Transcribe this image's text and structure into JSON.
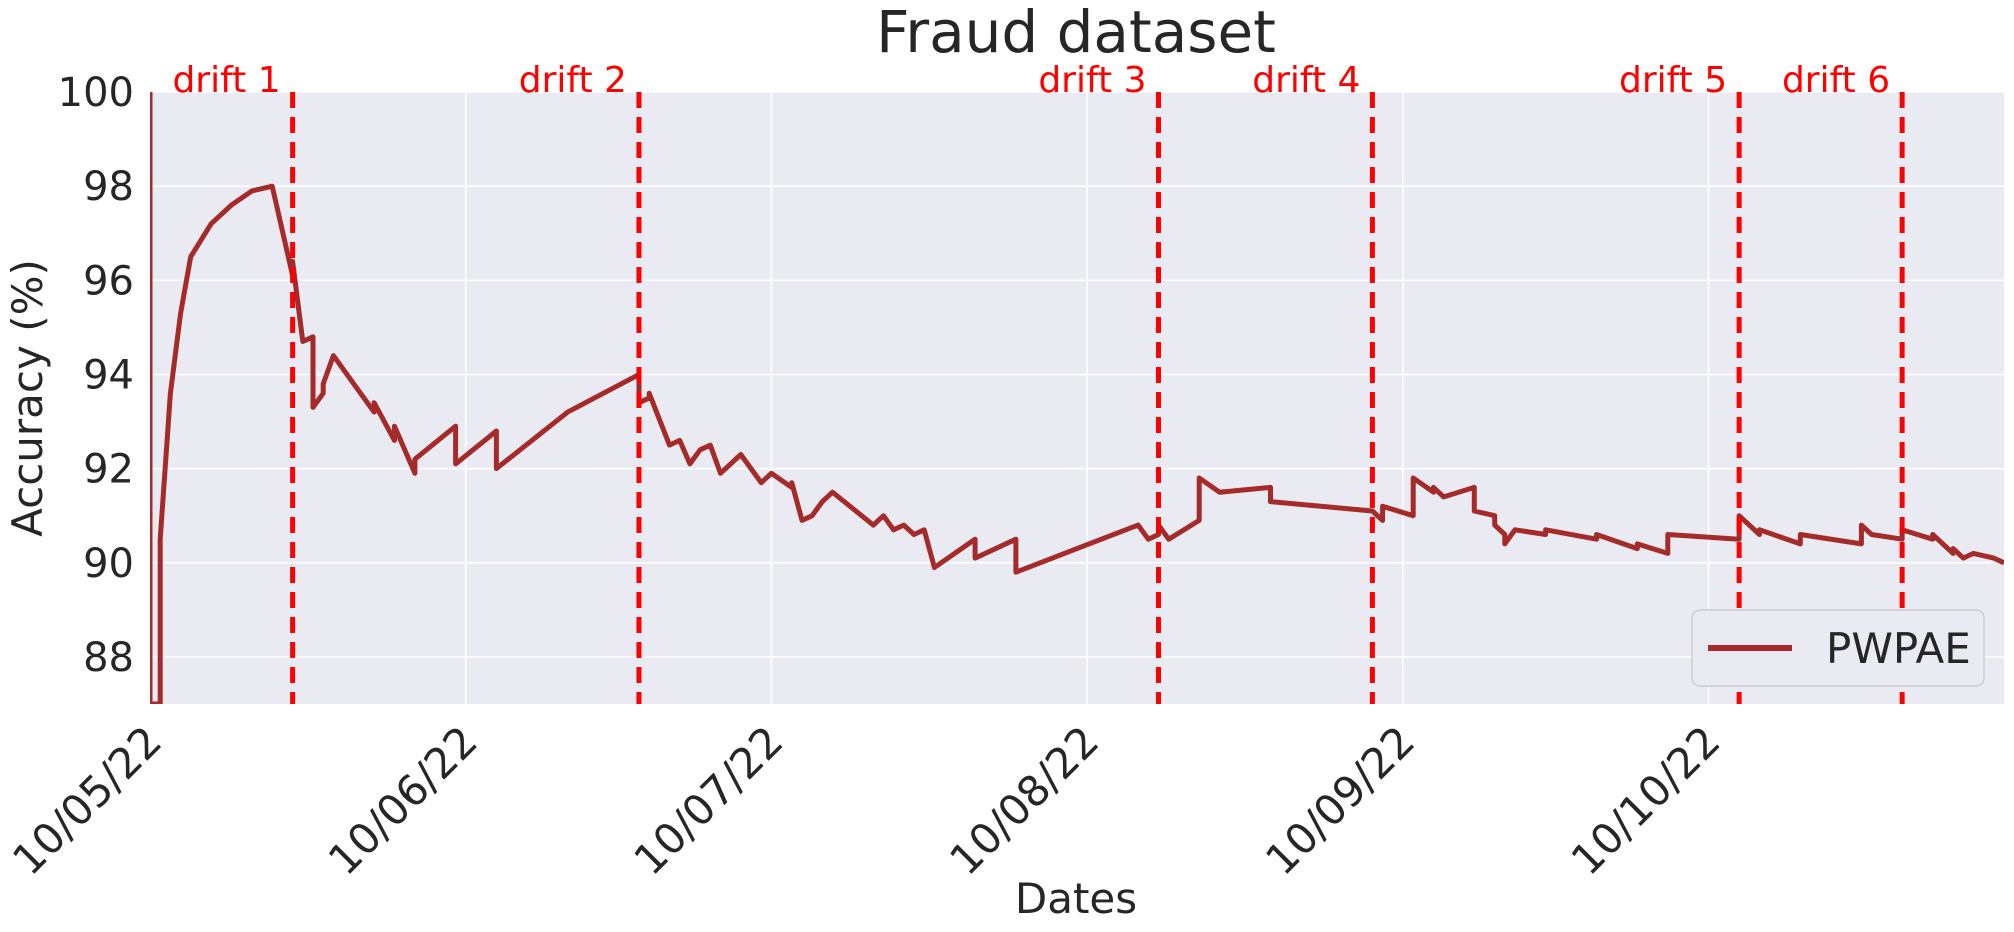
{
  "chart_data": {
    "type": "line",
    "title": "Fraud dataset",
    "xlabel": "Dates",
    "ylabel": "Accuracy (%)",
    "ylim": [
      87,
      100
    ],
    "xlim": [
      "2022-05-10",
      "2022-11-08"
    ],
    "y_ticks": [
      88,
      90,
      92,
      94,
      96,
      98,
      100
    ],
    "x_ticks": [
      {
        "date": "2022-05-10",
        "label": "10/05/22"
      },
      {
        "date": "2022-06-10",
        "label": "10/06/22"
      },
      {
        "date": "2022-07-10",
        "label": "10/07/22"
      },
      {
        "date": "2022-08-10",
        "label": "10/08/22"
      },
      {
        "date": "2022-09-10",
        "label": "10/09/22"
      },
      {
        "date": "2022-10-10",
        "label": "10/10/22"
      }
    ],
    "grid": true,
    "legend_position": "bottom-right",
    "colors": {
      "plot_background": "#eaeaf2",
      "grid": "#ffffff",
      "series": "#a52a2a",
      "drift": "#ff0000",
      "text": "#262626"
    },
    "series": [
      {
        "name": "PWPAE",
        "x": [
          "2022-05-10",
          "2022-05-10",
          "2022-05-11",
          "2022-05-11",
          "2022-05-12",
          "2022-05-13",
          "2022-05-14",
          "2022-05-16",
          "2022-05-18",
          "2022-05-20",
          "2022-05-22",
          "2022-05-24",
          "2022-05-24",
          "2022-05-24",
          "2022-05-25",
          "2022-05-26",
          "2022-05-26",
          "2022-05-27",
          "2022-05-27",
          "2022-05-28",
          "2022-06-01",
          "2022-06-01",
          "2022-06-03",
          "2022-06-03",
          "2022-06-05",
          "2022-06-05",
          "2022-06-09",
          "2022-06-09",
          "2022-06-13",
          "2022-06-13",
          "2022-06-20",
          "2022-06-27",
          "2022-06-27",
          "2022-06-28",
          "2022-06-28",
          "2022-06-30",
          "2022-07-01",
          "2022-07-02",
          "2022-07-03",
          "2022-07-04",
          "2022-07-05",
          "2022-07-06",
          "2022-07-07",
          "2022-07-09",
          "2022-07-10",
          "2022-07-12",
          "2022-07-12",
          "2022-07-13",
          "2022-07-14",
          "2022-07-15",
          "2022-07-16",
          "2022-07-20",
          "2022-07-21",
          "2022-07-22",
          "2022-07-23",
          "2022-07-24",
          "2022-07-25",
          "2022-07-26",
          "2022-07-30",
          "2022-07-30",
          "2022-08-03",
          "2022-08-03",
          "2022-08-09",
          "2022-08-15",
          "2022-08-16",
          "2022-08-17",
          "2022-08-17",
          "2022-08-18",
          "2022-08-21",
          "2022-08-21",
          "2022-08-23",
          "2022-08-28",
          "2022-08-28",
          "2022-09-07",
          "2022-09-08",
          "2022-09-08",
          "2022-09-11",
          "2022-09-11",
          "2022-09-13",
          "2022-09-13",
          "2022-09-14",
          "2022-09-17",
          "2022-09-17",
          "2022-09-19",
          "2022-09-19",
          "2022-09-20",
          "2022-09-20",
          "2022-09-21",
          "2022-09-24",
          "2022-09-24",
          "2022-09-29",
          "2022-09-29",
          "2022-10-03",
          "2022-10-03",
          "2022-10-06",
          "2022-10-06",
          "2022-10-13",
          "2022-10-13",
          "2022-10-15",
          "2022-10-15",
          "2022-10-19",
          "2022-10-19",
          "2022-10-25",
          "2022-10-25",
          "2022-10-26",
          "2022-10-29",
          "2022-10-29",
          "2022-11-01",
          "2022-11-01",
          "2022-11-03",
          "2022-11-03",
          "2022-11-04",
          "2022-11-05",
          "2022-11-07",
          "2022-11-08"
        ],
        "values": [
          100,
          87.0,
          87.0,
          90.5,
          93.6,
          95.3,
          96.5,
          97.2,
          97.6,
          97.9,
          98.0,
          96.1,
          96.3,
          96.4,
          94.7,
          94.8,
          93.3,
          93.6,
          93.8,
          94.4,
          93.2,
          93.4,
          92.6,
          92.9,
          91.9,
          92.2,
          92.9,
          92.1,
          92.8,
          92.0,
          93.2,
          94.0,
          93.4,
          93.5,
          93.6,
          92.5,
          92.6,
          92.1,
          92.4,
          92.5,
          91.9,
          92.1,
          92.3,
          91.7,
          91.9,
          91.6,
          91.7,
          90.9,
          91.0,
          91.3,
          91.5,
          90.8,
          91.0,
          90.7,
          90.8,
          90.6,
          90.7,
          89.9,
          90.5,
          90.1,
          90.5,
          89.8,
          90.3,
          90.8,
          90.5,
          90.6,
          90.8,
          90.5,
          90.9,
          91.8,
          91.5,
          91.6,
          91.3,
          91.1,
          90.9,
          91.2,
          91.0,
          91.8,
          91.5,
          91.6,
          91.4,
          91.6,
          91.1,
          91.0,
          90.8,
          90.6,
          90.4,
          90.7,
          90.6,
          90.7,
          90.5,
          90.6,
          90.3,
          90.4,
          90.2,
          90.6,
          90.5,
          91.0,
          90.6,
          90.7,
          90.4,
          90.6,
          90.4,
          90.8,
          90.6,
          90.5,
          90.7,
          90.5,
          90.6,
          90.2,
          90.3,
          90.1,
          90.2,
          90.1,
          90.0
        ]
      }
    ],
    "drifts": [
      {
        "label": "drift 1",
        "date": "2022-05-24"
      },
      {
        "label": "drift 2",
        "date": "2022-06-27"
      },
      {
        "label": "drift 3",
        "date": "2022-08-17"
      },
      {
        "label": "drift 4",
        "date": "2022-09-07"
      },
      {
        "label": "drift 5",
        "date": "2022-10-13"
      },
      {
        "label": "drift 6",
        "date": "2022-10-29"
      }
    ]
  }
}
